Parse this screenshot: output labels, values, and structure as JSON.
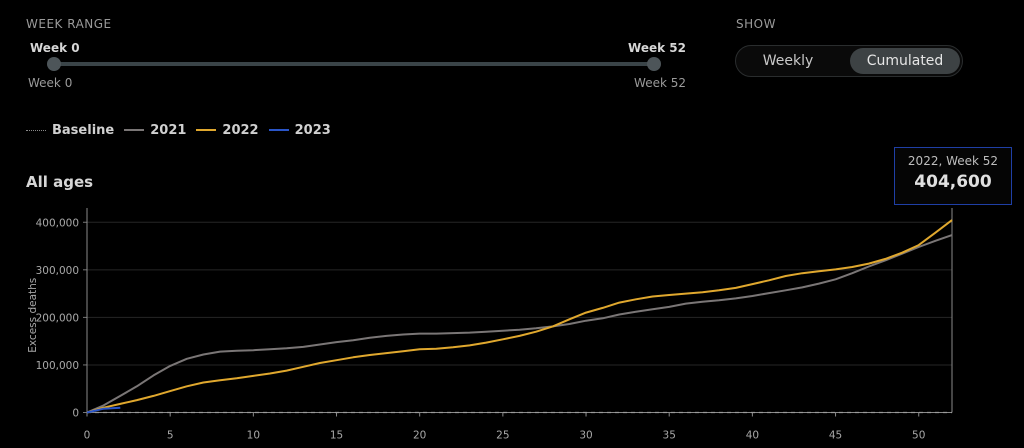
{
  "controls": {
    "week_range_label": "WEEK RANGE",
    "range_start_top": "Week 0",
    "range_end_top": "Week 52",
    "range_start_bottom": "Week 0",
    "range_end_bottom": "Week 52",
    "range_start_value": 0,
    "range_end_value": 52,
    "show_label": "SHOW",
    "show_options": [
      "Weekly",
      "Cumulated"
    ],
    "show_selected": "Cumulated"
  },
  "legend": [
    {
      "label": "Baseline",
      "color": "#8a8a8a",
      "style": "dotted"
    },
    {
      "label": "2021",
      "color": "#7a7676",
      "style": "solid"
    },
    {
      "label": "2022",
      "color": "#e0a82e",
      "style": "solid"
    },
    {
      "label": "2023",
      "color": "#2a55c8",
      "style": "solid"
    }
  ],
  "tooltip": {
    "title": "2022, Week 52",
    "value": "404,600"
  },
  "chart_data": {
    "type": "line",
    "title": "All ages",
    "xlabel": "",
    "ylabel": "Excess deaths",
    "xlim": [
      0,
      52
    ],
    "ylim": [
      0,
      430000
    ],
    "xticks": [
      0,
      5,
      10,
      15,
      20,
      25,
      30,
      35,
      40,
      45,
      50
    ],
    "yticks": [
      0,
      100000,
      200000,
      300000,
      400000
    ],
    "ytick_labels": [
      "0",
      "100,000",
      "200,000",
      "300,000",
      "400,000"
    ],
    "grid": true,
    "series": [
      {
        "name": "Baseline",
        "color": "#9a9a9a",
        "dashed": true,
        "x": [
          0,
          52
        ],
        "y": [
          0,
          0
        ]
      },
      {
        "name": "2021",
        "color": "#7a7676",
        "x": [
          0,
          1,
          2,
          3,
          4,
          5,
          6,
          7,
          8,
          9,
          10,
          11,
          12,
          13,
          14,
          15,
          16,
          17,
          18,
          19,
          20,
          21,
          22,
          23,
          24,
          25,
          26,
          27,
          28,
          29,
          30,
          31,
          32,
          33,
          34,
          35,
          36,
          37,
          38,
          39,
          40,
          41,
          42,
          43,
          44,
          45,
          46,
          47,
          48,
          49,
          50,
          51,
          52
        ],
        "y": [
          0,
          15000,
          35000,
          55000,
          78000,
          98000,
          113000,
          122000,
          128000,
          130000,
          131000,
          133000,
          135000,
          138000,
          143000,
          148000,
          152000,
          157000,
          161000,
          164000,
          166000,
          166000,
          167000,
          168000,
          170000,
          172000,
          174000,
          177000,
          181000,
          186000,
          193000,
          198000,
          206000,
          212000,
          217000,
          222000,
          229000,
          233000,
          236000,
          240000,
          245000,
          251000,
          257000,
          263000,
          271000,
          280000,
          293000,
          307000,
          320000,
          334000,
          348000,
          361000,
          373000
        ]
      },
      {
        "name": "2022",
        "color": "#e0a82e",
        "x": [
          0,
          1,
          2,
          3,
          4,
          5,
          6,
          7,
          8,
          9,
          10,
          11,
          12,
          13,
          14,
          15,
          16,
          17,
          18,
          19,
          20,
          21,
          22,
          23,
          24,
          25,
          26,
          27,
          28,
          29,
          30,
          31,
          32,
          33,
          34,
          35,
          36,
          37,
          38,
          39,
          40,
          41,
          42,
          43,
          44,
          45,
          46,
          47,
          48,
          49,
          50,
          51,
          52
        ],
        "y": [
          0,
          10000,
          18000,
          26000,
          35000,
          45000,
          55000,
          63000,
          68000,
          72000,
          77000,
          82000,
          88000,
          96000,
          104000,
          110000,
          116000,
          121000,
          125000,
          129000,
          133000,
          134000,
          137000,
          141000,
          147000,
          154000,
          161000,
          170000,
          181000,
          196000,
          210000,
          220000,
          231000,
          238000,
          244000,
          247000,
          250000,
          253000,
          257000,
          262000,
          270000,
          278000,
          287000,
          293000,
          297000,
          301000,
          306000,
          313000,
          323000,
          336000,
          352000,
          378000,
          404600
        ]
      },
      {
        "name": "2023",
        "color": "#2a55c8",
        "x": [
          0,
          1,
          2
        ],
        "y": [
          0,
          8000,
          10000
        ]
      }
    ]
  }
}
